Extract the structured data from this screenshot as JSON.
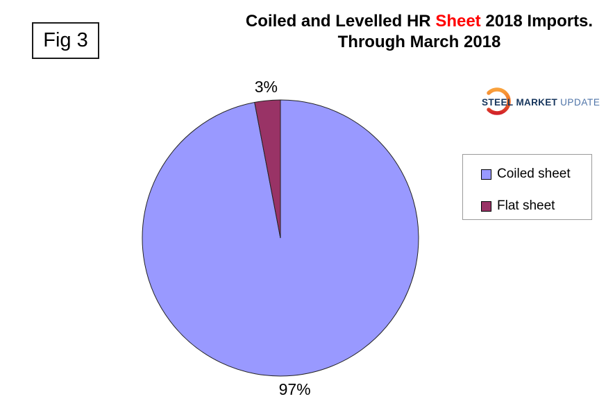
{
  "header": {
    "fig_label": "Fig 3",
    "title_prefix": "Coiled and Levelled HR ",
    "title_highlight": "Sheet",
    "title_suffix": " 2018 Imports.",
    "title_line2": "Through March 2018"
  },
  "logo": {
    "word1": "STEEL",
    "word2": "MARKET",
    "word3": "UPDATE",
    "navy": "#16355c",
    "light_blue": "#4f74a8",
    "orange_top": "#f9a13c",
    "orange_bottom": "#d2232a"
  },
  "chart_data": {
    "type": "pie",
    "title": "Coiled and Levelled HR Sheet 2018 Imports. Through March 2018",
    "start_angle_deg": 0,
    "direction": "clockwise",
    "legend_position": "right",
    "slices": [
      {
        "label": "Coiled sheet",
        "value": 97,
        "pct_label": "97%",
        "color": "#9999FF"
      },
      {
        "label": "Flat sheet",
        "value": 3,
        "pct_label": "3%",
        "color": "#993366"
      }
    ]
  }
}
